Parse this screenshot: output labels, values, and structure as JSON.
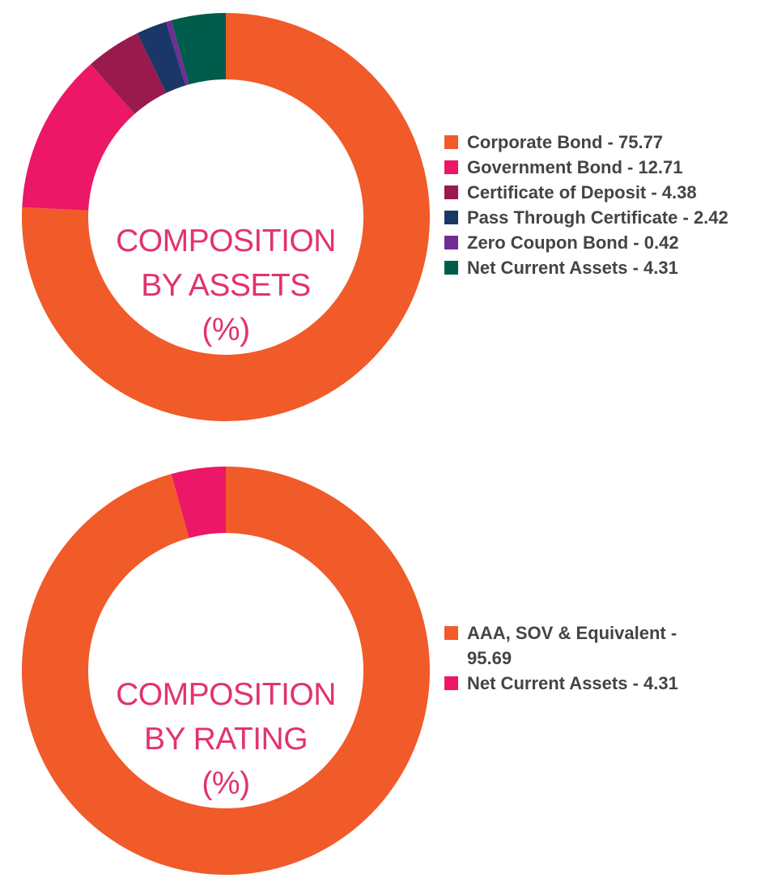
{
  "chart_data": [
    {
      "type": "pie",
      "title": "COMPOSITION BY ASSETS (%)",
      "title_lines": [
        "COMPOSITION",
        "BY ASSETS",
        "(%)"
      ],
      "legend_position": "right",
      "categories": [
        "Corporate Bond",
        "Government Bond",
        "Certificate of Deposit",
        "Pass Through Certificate",
        "Zero Coupon Bond",
        "Net Current Assets"
      ],
      "values": [
        75.77,
        12.71,
        4.38,
        2.42,
        0.42,
        4.31
      ],
      "labels": [
        "Corporate Bond - 75.77",
        "Government Bond - 12.71",
        "Certificate of Deposit - 4.38",
        "Pass Through Certificate - 2.42",
        "Zero Coupon Bond - 0.42",
        "Net Current Assets - 4.31"
      ],
      "colors": [
        "#F15A29",
        "#EC1766",
        "#9A1A4E",
        "#1B3768",
        "#722C94",
        "#005C4B"
      ]
    },
    {
      "type": "pie",
      "title": "COMPOSITION BY RATING (%)",
      "title_lines": [
        "COMPOSITION",
        "BY RATING",
        "(%)"
      ],
      "legend_position": "right",
      "categories": [
        "AAA, SOV & Equivalent",
        "Net Current Assets"
      ],
      "values": [
        95.69,
        4.31
      ],
      "labels": [
        "AAA, SOV & Equivalent - 95.69",
        "Net Current Assets - 4.31"
      ],
      "colors": [
        "#F15A29",
        "#EC1766"
      ]
    }
  ]
}
